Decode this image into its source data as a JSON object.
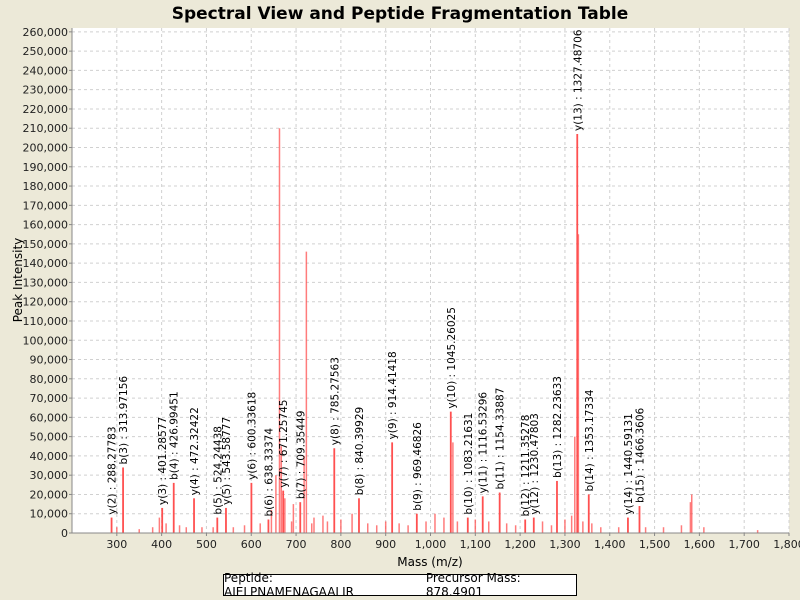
{
  "chart_data": {
    "type": "bar",
    "title": "Spectral View and Peptide Fragmentation Table",
    "xlabel": "Mass (m/z)",
    "ylabel": "Peak Intensity",
    "xlim": [
      200,
      1800
    ],
    "ylim": [
      0,
      262000
    ],
    "xticks": [
      300,
      400,
      500,
      600,
      700,
      800,
      900,
      1000,
      1100,
      1200,
      1300,
      1400,
      1500,
      1600,
      1700,
      1800
    ],
    "yticks": [
      0,
      10000,
      20000,
      30000,
      40000,
      50000,
      60000,
      70000,
      80000,
      90000,
      100000,
      110000,
      120000,
      130000,
      140000,
      150000,
      160000,
      170000,
      180000,
      190000,
      200000,
      210000,
      220000,
      230000,
      240000,
      250000,
      260000
    ],
    "grid": true,
    "color": "#FF5050",
    "annotated_peaks": [
      {
        "label": "y(2) : 288.27783",
        "mz": 288.28,
        "intensity": 8000
      },
      {
        "label": "b(3) : 313.97156",
        "mz": 313.97,
        "intensity": 34000
      },
      {
        "label": "y(3) : 401.28577",
        "mz": 401.29,
        "intensity": 13000
      },
      {
        "label": "b(4) : 426.99451",
        "mz": 426.99,
        "intensity": 26000
      },
      {
        "label": "y(4) : 472.32422",
        "mz": 472.32,
        "intensity": 18000
      },
      {
        "label": "b(5) : 524.24438",
        "mz": 524.24,
        "intensity": 8000
      },
      {
        "label": "y(5) : 543.58777",
        "mz": 543.59,
        "intensity": 13000
      },
      {
        "label": "y(6) : 600.33618",
        "mz": 600.34,
        "intensity": 26000
      },
      {
        "label": "b(6) : 638.33374",
        "mz": 638.33,
        "intensity": 7000
      },
      {
        "label": "y(7) : 671.25745",
        "mz": 671.26,
        "intensity": 22000
      },
      {
        "label": "b(7) : 709.35449",
        "mz": 709.35,
        "intensity": 16000
      },
      {
        "label": "y(8) : 785.27563",
        "mz": 785.28,
        "intensity": 44000
      },
      {
        "label": "b(8) : 840.39929",
        "mz": 840.4,
        "intensity": 18000
      },
      {
        "label": "y(9) : 914.41418",
        "mz": 914.41,
        "intensity": 47000
      },
      {
        "label": "b(9) : 969.46826",
        "mz": 969.47,
        "intensity": 10000
      },
      {
        "label": "y(10) : 1045.26025",
        "mz": 1045.26,
        "intensity": 63000
      },
      {
        "label": "b(10) : 1083.21631",
        "mz": 1083.22,
        "intensity": 8000
      },
      {
        "label": "y(11) : 1116.53296",
        "mz": 1116.53,
        "intensity": 19000
      },
      {
        "label": "b(11) : 1154.33887",
        "mz": 1154.34,
        "intensity": 21000
      },
      {
        "label": "b(12) : 1211.35278",
        "mz": 1211.35,
        "intensity": 7000
      },
      {
        "label": "y(12) : 1230.47803",
        "mz": 1230.48,
        "intensity": 8000
      },
      {
        "label": "b(13) : 1282.23633",
        "mz": 1282.24,
        "intensity": 27000
      },
      {
        "label": "y(13) : 1327.48706",
        "mz": 1327.49,
        "intensity": 207000
      },
      {
        "label": "b(14) : 1353.17334",
        "mz": 1353.17,
        "intensity": 20000
      },
      {
        "label": "y(14) : 1440.59131",
        "mz": 1440.59,
        "intensity": 8000
      },
      {
        "label": "b(15) : 1466.3606",
        "mz": 1466.36,
        "intensity": 14000
      }
    ],
    "other_peaks": [
      [
        663,
        210000
      ],
      [
        723,
        146000
      ],
      [
        718,
        40000
      ],
      [
        667,
        45000
      ],
      [
        675,
        18000
      ],
      [
        694,
        15000
      ],
      [
        740,
        8000
      ],
      [
        760,
        9000
      ],
      [
        800,
        7000
      ],
      [
        825,
        10000
      ],
      [
        380,
        3000
      ],
      [
        395,
        8000
      ],
      [
        410,
        5000
      ],
      [
        440,
        4000
      ],
      [
        455,
        3000
      ],
      [
        490,
        3000
      ],
      [
        515,
        3000
      ],
      [
        560,
        3000
      ],
      [
        585,
        4000
      ],
      [
        620,
        5000
      ],
      [
        645,
        12000
      ],
      [
        655,
        30000
      ],
      [
        690,
        6000
      ],
      [
        735,
        5000
      ],
      [
        770,
        6000
      ],
      [
        860,
        5000
      ],
      [
        880,
        4000
      ],
      [
        900,
        6000
      ],
      [
        930,
        5000
      ],
      [
        950,
        4000
      ],
      [
        990,
        6000
      ],
      [
        1010,
        10000
      ],
      [
        1030,
        8000
      ],
      [
        1050,
        47000
      ],
      [
        1060,
        6000
      ],
      [
        1100,
        7000
      ],
      [
        1130,
        6000
      ],
      [
        1170,
        5000
      ],
      [
        1190,
        4000
      ],
      [
        1250,
        6000
      ],
      [
        1270,
        4000
      ],
      [
        1300,
        7000
      ],
      [
        1315,
        9000
      ],
      [
        1322,
        50000
      ],
      [
        1330,
        155000
      ],
      [
        1340,
        6000
      ],
      [
        1360,
        5000
      ],
      [
        1380,
        3000
      ],
      [
        1420,
        3000
      ],
      [
        1480,
        3000
      ],
      [
        1520,
        3000
      ],
      [
        1560,
        4000
      ],
      [
        1583,
        20000
      ],
      [
        1580,
        16000
      ],
      [
        1610,
        3000
      ],
      [
        1730,
        1500
      ],
      [
        350,
        2000
      ],
      [
        300,
        3000
      ]
    ]
  },
  "legend": {
    "peptide": "Peptide: AIELPNAMENAGAALIR",
    "precursor": "Precursor Mass: 878.4901"
  }
}
